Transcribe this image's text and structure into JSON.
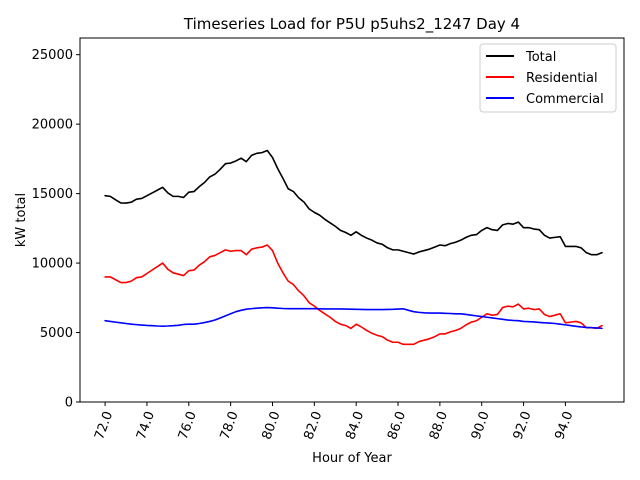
{
  "chart_data": {
    "type": "line",
    "title": "Timeseries Load for P5U p5uhs2_1247  Day 4",
    "xlabel": "Hour of Year",
    "ylabel": "kW total",
    "xlim": [
      70.8,
      96.8
    ],
    "ylim": [
      0,
      26200
    ],
    "grid": false,
    "legend_position": "top-right",
    "x_ticks": [
      72,
      74,
      76,
      78,
      80,
      82,
      84,
      86,
      88,
      90,
      92,
      94
    ],
    "x_tick_labels": [
      "72.0",
      "74.0",
      "76.0",
      "78.0",
      "80.0",
      "82.0",
      "84.0",
      "86.0",
      "88.0",
      "90.0",
      "92.0",
      "94.0"
    ],
    "y_ticks": [
      0,
      5000,
      10000,
      15000,
      20000,
      25000
    ],
    "y_tick_labels": [
      "0",
      "5000",
      "10000",
      "15000",
      "20000",
      "25000"
    ],
    "x_start": 72.0,
    "x_step": 0.25,
    "series": [
      {
        "name": "Total",
        "color": "#000000",
        "values": [
          14850,
          14800,
          14550,
          14330,
          14320,
          14380,
          14600,
          14650,
          14850,
          15050,
          15250,
          15450,
          15050,
          14800,
          14800,
          14720,
          15100,
          15150,
          15500,
          15800,
          16200,
          16400,
          16750,
          17150,
          17200,
          17350,
          17550,
          17300,
          17750,
          17900,
          17950,
          18100,
          17600,
          16800,
          16100,
          15350,
          15150,
          14700,
          14400,
          13900,
          13650,
          13450,
          13150,
          12900,
          12650,
          12350,
          12200,
          12000,
          12250,
          12000,
          11800,
          11650,
          11450,
          11350,
          11100,
          10950,
          10950,
          10850,
          10750,
          10650,
          10800,
          10900,
          11000,
          11150,
          11300,
          11250,
          11400,
          11500,
          11650,
          11850,
          12000,
          12050,
          12350,
          12550,
          12400,
          12350,
          12750,
          12850,
          12800,
          12950,
          12550,
          12550,
          12450,
          12400,
          12000,
          11800,
          11850,
          11900,
          11200,
          11200,
          11200,
          11100,
          10750,
          10600,
          10600,
          10750
        ]
      },
      {
        "name": "Residential",
        "color": "#ff0000",
        "values": [
          9000,
          9000,
          8800,
          8600,
          8600,
          8700,
          8950,
          9000,
          9250,
          9500,
          9750,
          10000,
          9550,
          9300,
          9200,
          9100,
          9450,
          9500,
          9850,
          10100,
          10450,
          10550,
          10750,
          10950,
          10850,
          10900,
          10900,
          10600,
          11000,
          11100,
          11150,
          11300,
          10900,
          10000,
          9300,
          8700,
          8450,
          8000,
          7650,
          7150,
          6900,
          6600,
          6350,
          6100,
          5800,
          5600,
          5500,
          5300,
          5600,
          5400,
          5150,
          4950,
          4800,
          4700,
          4450,
          4300,
          4300,
          4150,
          4150,
          4150,
          4350,
          4450,
          4550,
          4700,
          4900,
          4900,
          5050,
          5150,
          5300,
          5550,
          5750,
          5850,
          6100,
          6350,
          6250,
          6300,
          6800,
          6900,
          6850,
          7050,
          6700,
          6750,
          6650,
          6700,
          6300,
          6150,
          6250,
          6350,
          5700,
          5750,
          5800,
          5700,
          5350,
          5350,
          5300,
          5500
        ]
      },
      {
        "name": "Commercial",
        "color": "#0000ff",
        "values": [
          5850,
          5800,
          5750,
          5700,
          5650,
          5600,
          5570,
          5540,
          5510,
          5490,
          5470,
          5460,
          5470,
          5490,
          5520,
          5580,
          5600,
          5600,
          5650,
          5720,
          5800,
          5900,
          6050,
          6200,
          6350,
          6500,
          6600,
          6680,
          6720,
          6750,
          6780,
          6800,
          6780,
          6750,
          6730,
          6720,
          6720,
          6720,
          6720,
          6720,
          6720,
          6710,
          6700,
          6700,
          6700,
          6700,
          6690,
          6680,
          6670,
          6660,
          6650,
          6650,
          6650,
          6650,
          6660,
          6670,
          6690,
          6710,
          6600,
          6500,
          6450,
          6420,
          6400,
          6400,
          6400,
          6380,
          6370,
          6350,
          6350,
          6300,
          6250,
          6200,
          6150,
          6100,
          6050,
          6000,
          5950,
          5900,
          5870,
          5850,
          5800,
          5780,
          5760,
          5730,
          5700,
          5680,
          5650,
          5600,
          5550,
          5500,
          5450,
          5400,
          5370,
          5350,
          5330,
          5300
        ]
      }
    ]
  }
}
